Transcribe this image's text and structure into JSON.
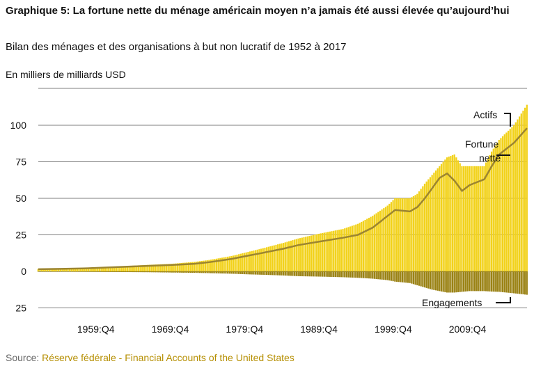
{
  "header": {
    "title": "Graphique 5: La fortune nette du ménage américain moyen n’a jamais été aussi élevée qu’aujourd’hui",
    "subtitle": "Bilan des ménages et des organisations à but non lucratif de 1952 à 2017",
    "unit": "En milliers de milliards USD"
  },
  "footer": {
    "source_prefix": "Source: ",
    "source_name": "Réserve fédérale - Financial Accounts of the United States"
  },
  "colors": {
    "assets": "#f2d21b",
    "liabilities": "#9a8214",
    "net_worth": "#9c8530",
    "grid": "#555555",
    "source_link": "#b58e00"
  },
  "chart_data": {
    "type": "bar",
    "title": "Graphique 5: La fortune nette du ménage américain moyen n’a jamais été aussi élevée qu’aujourd’hui",
    "subtitle": "Bilan des ménages et des organisations à but non lucratif de 1952 à 2017",
    "ylabel": "En milliers de milliards USD",
    "ylim": [
      -25,
      115
    ],
    "yticks": [
      100,
      75,
      50,
      25,
      0,
      -25
    ],
    "ytick_labels": [
      "100",
      "75",
      "50",
      "25",
      "0",
      "25"
    ],
    "xlim": [
      1952,
      2017.75
    ],
    "xticks": [
      1959.75,
      1969.75,
      1979.75,
      1989.75,
      1999.75,
      2009.75
    ],
    "xtick_labels": [
      "1959:Q4",
      "1969:Q4",
      "1979:Q4",
      "1989:Q4",
      "1999:Q4",
      "2009:Q4"
    ],
    "grid": true,
    "x": [
      1952,
      1955,
      1958,
      1961,
      1964,
      1967,
      1970,
      1973,
      1975,
      1978,
      1980,
      1982,
      1985,
      1987,
      1990,
      1993,
      1995,
      1997,
      1999,
      2000,
      2002,
      2003,
      2004,
      2005,
      2006,
      2007,
      2008,
      2009,
      2010,
      2011,
      2012,
      2013,
      2014,
      2015,
      2016,
      2017.75
    ],
    "series": [
      {
        "name": "Actifs",
        "values": [
          1.7,
          2.0,
          2.4,
          3.0,
          3.7,
          4.5,
          5.2,
          6.5,
          7.8,
          10.5,
          13,
          15.5,
          19.5,
          22.5,
          26,
          29,
          32.5,
          38,
          45,
          50,
          50,
          53,
          60,
          66,
          72,
          78,
          80,
          72,
          72,
          72,
          72,
          82,
          90,
          95,
          100,
          114
        ]
      },
      {
        "name": "Fortune nette",
        "values": [
          1.5,
          1.7,
          2.0,
          2.6,
          3.2,
          3.8,
          4.4,
          5.2,
          6.3,
          8.5,
          10.5,
          12.5,
          15.5,
          18,
          20.5,
          23,
          25,
          30,
          38,
          42,
          41,
          44,
          50,
          57,
          64,
          67,
          62,
          55,
          59,
          61,
          63,
          72,
          80,
          84,
          88,
          98
        ]
      },
      {
        "name": "Engagements",
        "values": [
          -0.2,
          -0.2,
          -0.3,
          -0.4,
          -0.5,
          -0.6,
          -0.8,
          -1.0,
          -1.2,
          -1.6,
          -2.0,
          -2.3,
          -2.8,
          -3.3,
          -3.6,
          -4.0,
          -4.4,
          -5.0,
          -6.0,
          -7.0,
          -8.0,
          -9.5,
          -11,
          -12.5,
          -13.5,
          -14.5,
          -14.5,
          -14,
          -13.5,
          -13.5,
          -13.5,
          -13.8,
          -14,
          -14.5,
          -15,
          -16
        ]
      }
    ],
    "annotations": [
      "Actifs",
      "Fortune",
      "nette",
      "Engagements"
    ]
  }
}
